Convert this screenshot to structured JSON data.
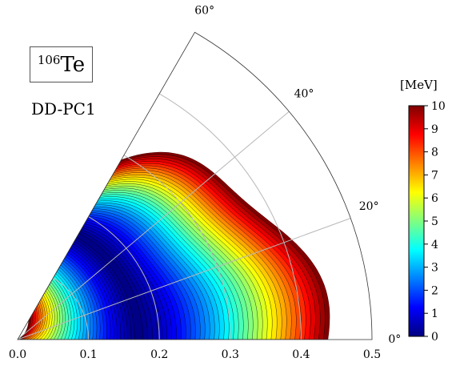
{
  "nucleus": {
    "mass_number": "106",
    "symbol": "Te"
  },
  "method": "DD-PC1",
  "colorbar": {
    "unit": "[MeV]",
    "min": 0,
    "max": 10,
    "ticks": [
      "0",
      "1",
      "2",
      "3",
      "4",
      "5",
      "6",
      "7",
      "8",
      "9",
      "10"
    ]
  },
  "chart_data": {
    "type": "heatmap",
    "subtype": "polar beta-gamma potential energy surface (contour)",
    "title": "",
    "xlabel": "",
    "ylabel": "",
    "radial_ticks": [
      "0.0",
      "0.1",
      "0.2",
      "0.3",
      "0.4",
      "0.5"
    ],
    "radial_range": [
      0,
      0.5
    ],
    "angular_ticks": [
      "0°",
      "20°",
      "40°",
      "60°"
    ],
    "angular_range": [
      0,
      60
    ],
    "grid": true,
    "minimum": {
      "beta": 0.17,
      "gamma": 0,
      "energy": 0
    },
    "contour_step": 0.25,
    "outer_boundary_energy": 10,
    "colormap": "jet"
  }
}
